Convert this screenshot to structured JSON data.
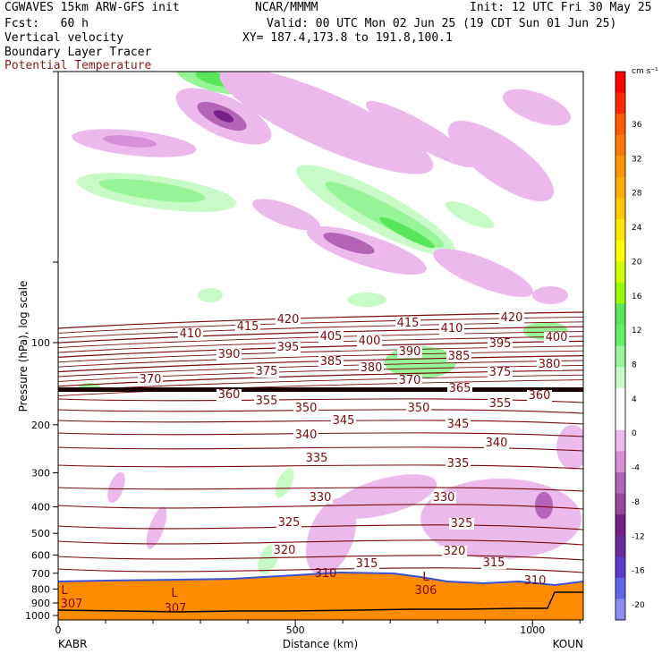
{
  "header": {
    "model": "CGWAVES 15km ARW-GFS init",
    "org": "NCAR/MMMM",
    "init": "Init: 12 UTC Fri 30 May 25",
    "fcst": "Fcst:   60 h",
    "valid": "Valid: 00 UTC Mon 02 Jun 25 (19 CDT Sun 01 Jun 25)",
    "field1": "Vertical velocity",
    "field2": "Boundary Layer Tracer",
    "field3": "Potential Temperature",
    "xy": "XY= 187.4,173.8 to 191.8,100.1"
  },
  "chart_data": {
    "type": "contour cross-section",
    "ylabel": "Pressure (hPa), log scale",
    "xlabel": "Distance (km)",
    "xticks": [
      0,
      500,
      1000
    ],
    "xrange": [
      0,
      1107
    ],
    "yticks": [
      100,
      200,
      300,
      400,
      500,
      600,
      700,
      800,
      900,
      1000
    ],
    "yscale": "log",
    "left_station": "KABR",
    "right_station": "KOUN",
    "colorbar": {
      "unit": "cm s⁻¹",
      "labels": [
        36,
        32,
        28,
        24,
        20,
        16,
        12,
        8,
        4,
        0,
        -4,
        -8,
        -12,
        -16,
        -20
      ],
      "colors": [
        "#ff0000",
        "#ff2a00",
        "#ff5a00",
        "#ff7800",
        "#ff9600",
        "#ffae00",
        "#ffc800",
        "#ffe600",
        "#ffff00",
        "#d2ff00",
        "#96ff00",
        "#5ae65a",
        "#64f064",
        "#96f596",
        "#c8fac8",
        "#ffffff",
        "#ffffff",
        "#ebbaeb",
        "#d78fd7",
        "#b464b4",
        "#9a449a",
        "#7a1e8c",
        "#6a2aa0",
        "#5a3cc8",
        "#6464e6",
        "#8c8cf0"
      ]
    },
    "theta_labels": [
      {
        "v": "420",
        "x": 322,
        "y": 361
      },
      {
        "v": "415",
        "x": 277,
        "y": 369
      },
      {
        "v": "410",
        "x": 213,
        "y": 377
      },
      {
        "v": "415",
        "x": 456,
        "y": 365
      },
      {
        "v": "410",
        "x": 505,
        "y": 371
      },
      {
        "v": "420",
        "x": 572,
        "y": 359
      },
      {
        "v": "400",
        "x": 622,
        "y": 381
      },
      {
        "v": "405",
        "x": 370,
        "y": 380
      },
      {
        "v": "400",
        "x": 413,
        "y": 385
      },
      {
        "v": "395",
        "x": 322,
        "y": 392
      },
      {
        "v": "390",
        "x": 256,
        "y": 400
      },
      {
        "v": "395",
        "x": 559,
        "y": 388
      },
      {
        "v": "390",
        "x": 458,
        "y": 397
      },
      {
        "v": "385",
        "x": 513,
        "y": 402
      },
      {
        "v": "385",
        "x": 370,
        "y": 408
      },
      {
        "v": "380",
        "x": 415,
        "y": 415
      },
      {
        "v": "380",
        "x": 614,
        "y": 411
      },
      {
        "v": "375",
        "x": 298,
        "y": 419
      },
      {
        "v": "375",
        "x": 559,
        "y": 420
      },
      {
        "v": "370",
        "x": 168,
        "y": 428
      },
      {
        "v": "370",
        "x": 458,
        "y": 429
      },
      {
        "v": "365",
        "x": 514,
        "y": 438
      },
      {
        "v": "360",
        "x": 256,
        "y": 445
      },
      {
        "v": "360",
        "x": 603,
        "y": 446
      },
      {
        "v": "355",
        "x": 298,
        "y": 452
      },
      {
        "v": "355",
        "x": 559,
        "y": 455
      },
      {
        "v": "350",
        "x": 342,
        "y": 460
      },
      {
        "v": "350",
        "x": 468,
        "y": 460
      },
      {
        "v": "345",
        "x": 384,
        "y": 474
      },
      {
        "v": "345",
        "x": 512,
        "y": 478
      },
      {
        "v": "340",
        "x": 342,
        "y": 490
      },
      {
        "v": "340",
        "x": 555,
        "y": 499
      },
      {
        "v": "335",
        "x": 354,
        "y": 516
      },
      {
        "v": "335",
        "x": 512,
        "y": 522
      },
      {
        "v": "330",
        "x": 358,
        "y": 560
      },
      {
        "v": "330",
        "x": 496,
        "y": 560
      },
      {
        "v": "325",
        "x": 323,
        "y": 588
      },
      {
        "v": "325",
        "x": 516,
        "y": 589
      },
      {
        "v": "320",
        "x": 318,
        "y": 619
      },
      {
        "v": "320",
        "x": 508,
        "y": 620
      },
      {
        "v": "315",
        "x": 410,
        "y": 634
      },
      {
        "v": "315",
        "x": 552,
        "y": 633
      },
      {
        "v": "310",
        "x": 364,
        "y": 645
      },
      {
        "v": "310",
        "x": 598,
        "y": 653
      },
      {
        "v": "306",
        "x": 476,
        "y": 664
      },
      {
        "v": "307",
        "x": 80,
        "y": 679
      },
      {
        "v": "307",
        "x": 196,
        "y": 684
      }
    ],
    "low_markers": [
      {
        "v": "L",
        "x": 72,
        "y": 664
      },
      {
        "v": "L",
        "x": 195,
        "y": 667
      },
      {
        "v": "L",
        "x": 476,
        "y": 649
      }
    ]
  }
}
